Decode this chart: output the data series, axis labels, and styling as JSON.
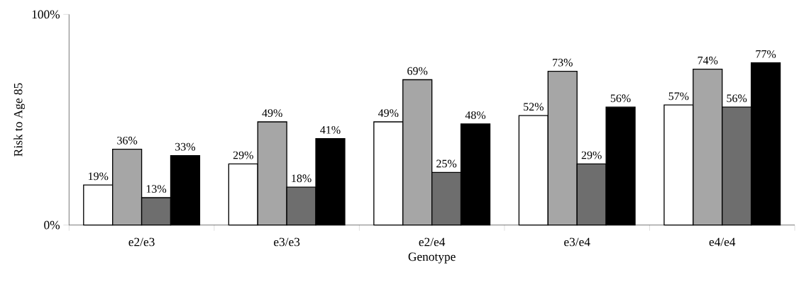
{
  "chart_data": {
    "type": "bar",
    "xlabel": "Genotype",
    "ylabel": "Risk to Age 85",
    "categories": [
      "e2/e3",
      "e3/e3",
      "e2/e4",
      "e3/e4",
      "e4/e4"
    ],
    "ylim": [
      0,
      100
    ],
    "yticks": [
      {
        "value": 0,
        "label": "0%"
      },
      {
        "value": 100,
        "label": "100%"
      }
    ],
    "grid": false,
    "series": [
      {
        "color": "#ffffff",
        "values": [
          19,
          29,
          49,
          52,
          57
        ],
        "value_labels": [
          "19%",
          "29%",
          "49%",
          "52%",
          "57%"
        ]
      },
      {
        "color": "#a6a6a6",
        "values": [
          36,
          49,
          69,
          73,
          74
        ],
        "value_labels": [
          "36%",
          "49%",
          "69%",
          "73%",
          "74%"
        ]
      },
      {
        "color": "#6e6e6e",
        "values": [
          13,
          18,
          25,
          29,
          56
        ],
        "value_labels": [
          "13%",
          "18%",
          "25%",
          "29%",
          "56%"
        ]
      },
      {
        "color": "#000000",
        "values": [
          33,
          41,
          48,
          56,
          77
        ],
        "value_labels": [
          "33%",
          "41%",
          "48%",
          "56%",
          "77%"
        ]
      }
    ]
  }
}
